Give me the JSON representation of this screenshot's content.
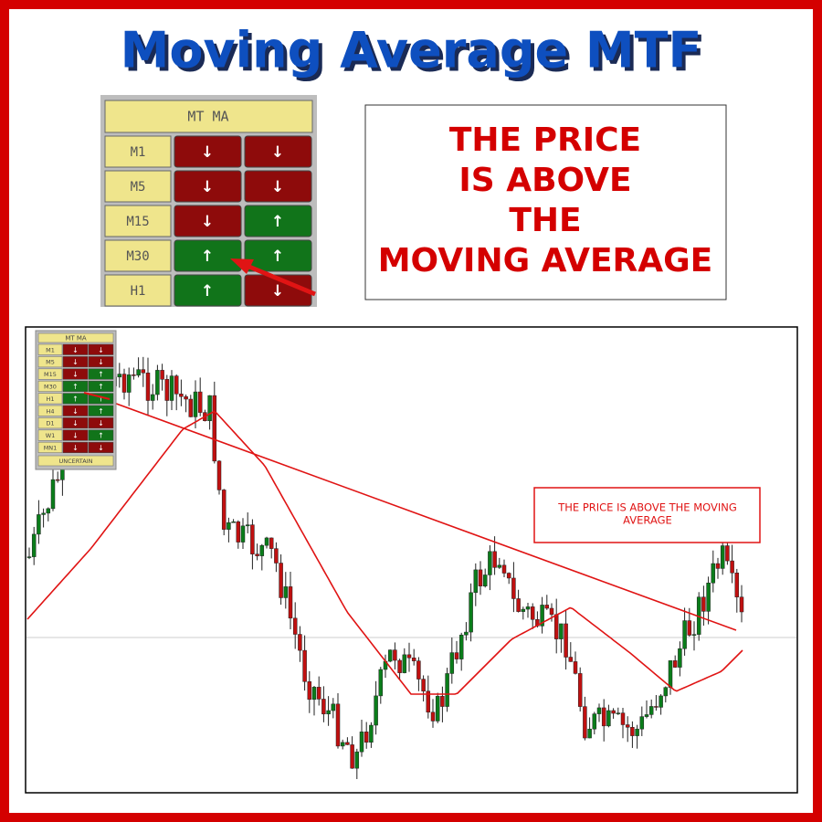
{
  "title": "Moving Average MTF",
  "panel": {
    "header": "MT MA",
    "rows": [
      {
        "label": "M1",
        "cells": [
          {
            "text": "↓",
            "color": "#8e0b0b"
          },
          {
            "text": "↓",
            "color": "#8e0b0b"
          }
        ]
      },
      {
        "label": "M5",
        "cells": [
          {
            "text": "↓",
            "color": "#8e0b0b"
          },
          {
            "text": "↓",
            "color": "#8e0b0b"
          }
        ]
      },
      {
        "label": "M15",
        "cells": [
          {
            "text": "↓",
            "color": "#8e0b0b"
          },
          {
            "text": "↑",
            "color": "#11741a"
          }
        ]
      },
      {
        "label": "M30",
        "cells": [
          {
            "text": "↑",
            "color": "#11741a"
          },
          {
            "text": "↑",
            "color": "#11741a"
          }
        ]
      },
      {
        "label": "H1",
        "cells": [
          {
            "text": "↑",
            "color": "#11741a"
          },
          {
            "text": "↓",
            "color": "#8e0b0b"
          }
        ]
      }
    ]
  },
  "callout": {
    "lines": [
      "THE PRICE",
      "IS ABOVE",
      "THE",
      "MOVING AVERAGE"
    ]
  },
  "mini_panel": {
    "header": "MT MA",
    "rows": [
      {
        "label": "M1",
        "cells": [
          {
            "text": "↓",
            "color": "#8e0b0b"
          },
          {
            "text": "↓",
            "color": "#8e0b0b"
          }
        ]
      },
      {
        "label": "M5",
        "cells": [
          {
            "text": "↓",
            "color": "#8e0b0b"
          },
          {
            "text": "↓",
            "color": "#8e0b0b"
          }
        ]
      },
      {
        "label": "M15",
        "cells": [
          {
            "text": "↓",
            "color": "#8e0b0b"
          },
          {
            "text": "↑",
            "color": "#11741a"
          }
        ]
      },
      {
        "label": "M30",
        "cells": [
          {
            "text": "↑",
            "color": "#11741a"
          },
          {
            "text": "↑",
            "color": "#11741a"
          }
        ]
      },
      {
        "label": "H1",
        "cells": [
          {
            "text": "↑",
            "color": "#11741a"
          },
          {
            "text": "↑",
            "color": "#11741a"
          }
        ]
      },
      {
        "label": "H4",
        "cells": [
          {
            "text": "↓",
            "color": "#8e0b0b"
          },
          {
            "text": "↑",
            "color": "#11741a"
          }
        ]
      },
      {
        "label": "D1",
        "cells": [
          {
            "text": "↓",
            "color": "#8e0b0b"
          },
          {
            "text": "↓",
            "color": "#8e0b0b"
          }
        ]
      },
      {
        "label": "W1",
        "cells": [
          {
            "text": "↓",
            "color": "#8e0b0b"
          },
          {
            "text": "↑",
            "color": "#11741a"
          }
        ]
      },
      {
        "label": "MN1",
        "cells": [
          {
            "text": "↓",
            "color": "#8e0b0b"
          },
          {
            "text": "↓",
            "color": "#8e0b0b"
          }
        ]
      }
    ],
    "footer": "UNCERTAIN"
  },
  "chart_annotation": {
    "lines": [
      "THE PRICE IS ABOVE THE MOVING",
      "AVERAGE"
    ]
  }
}
